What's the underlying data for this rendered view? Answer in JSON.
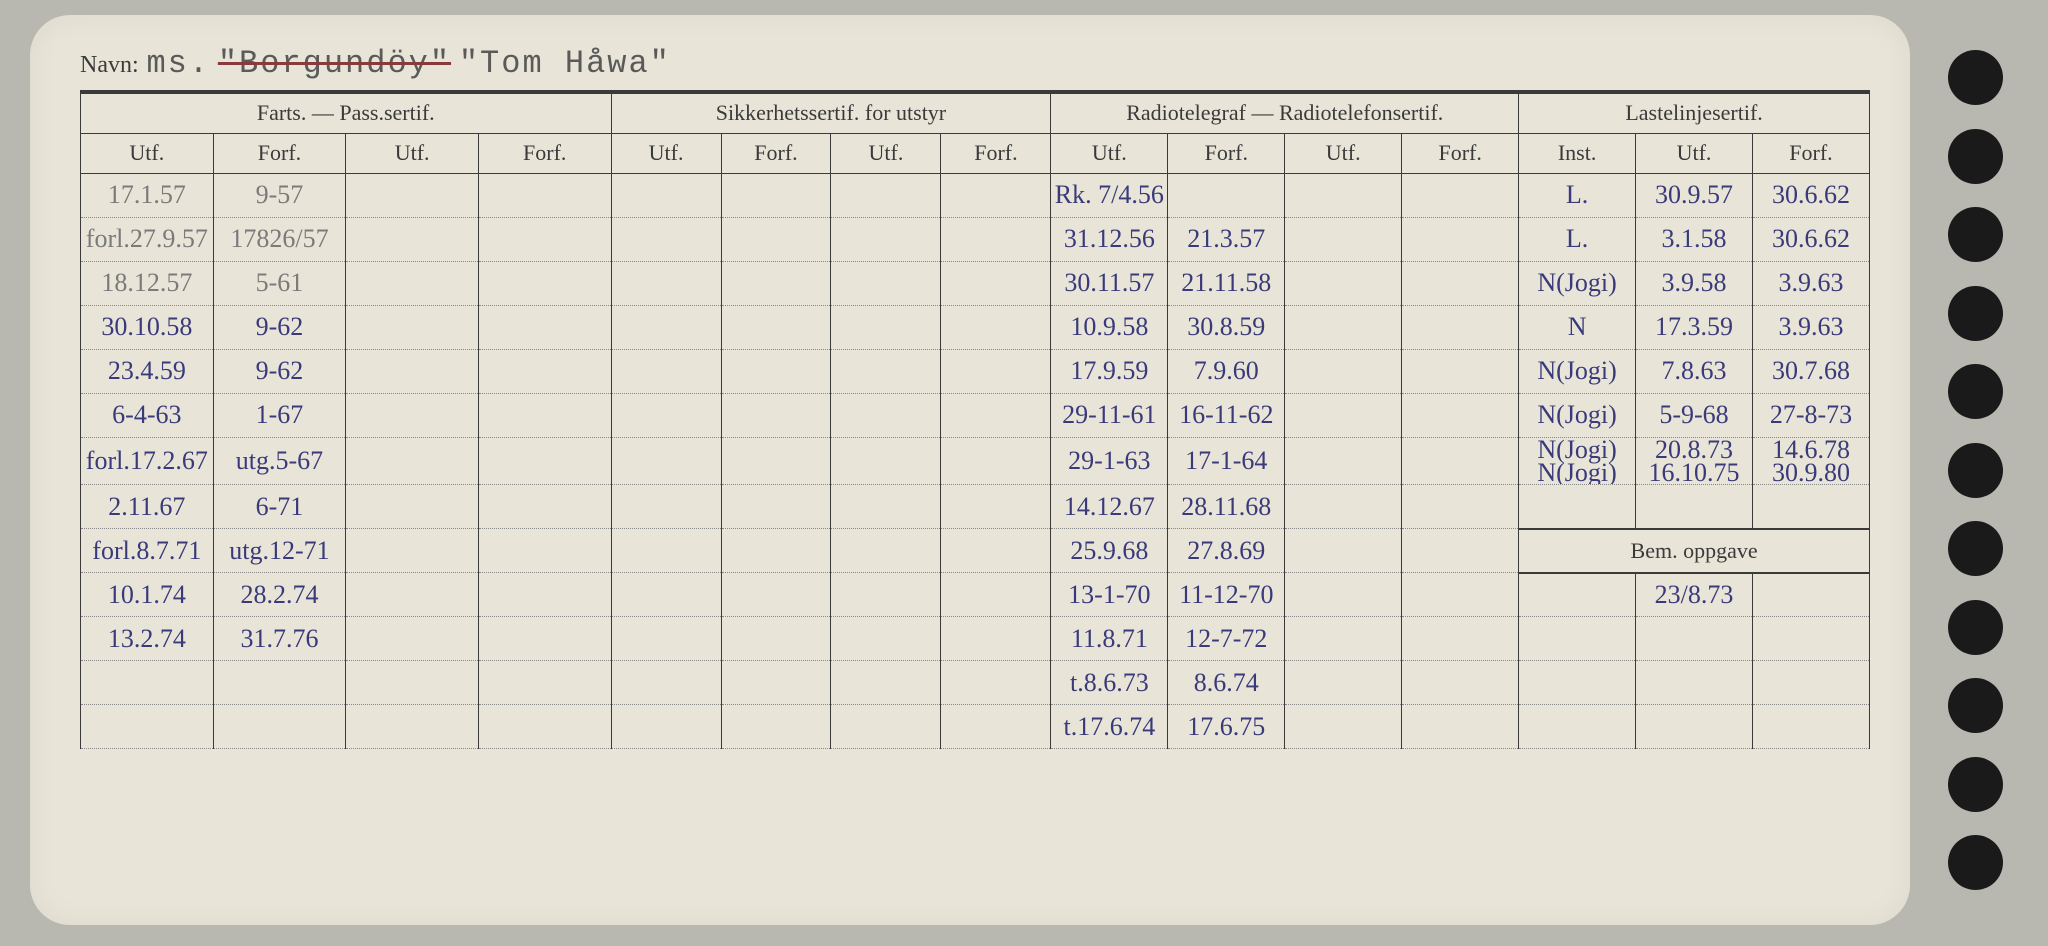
{
  "title": {
    "label": "Navn:",
    "prefix": "ms.",
    "struck": "\"Borgundöy\"",
    "name": "\"Tom Håwa\""
  },
  "headers": {
    "group1": "Farts. — Pass.sertif.",
    "group2": "Sikkerhetssertif. for utstyr",
    "group3": "Radiotelegraf — Radiotelefonsertif.",
    "group4": "Lastelinjesertif.",
    "utf": "Utf.",
    "forf": "Forf.",
    "inst": "Inst.",
    "bem": "Bem. oppgave"
  },
  "colors": {
    "paper": "#e8e5d8",
    "ink_printed": "#3a3a3a",
    "ink_pencil": "#7a7a7a",
    "ink_pen_blue": "#3a3a7a",
    "ink_pen_dark": "#2a2a4a",
    "hole": "#1a1a1a",
    "background": "#b8b8b0"
  },
  "rows": [
    {
      "f1": "17.1.57",
      "f2": "9-57",
      "r1": "Rk. 7/4.56",
      "r2": "",
      "l1": "L.",
      "l2": "30.9.57",
      "l3": "30.6.62"
    },
    {
      "f1": "forl.27.9.57",
      "f2": "17826/57",
      "r1": "31.12.56",
      "r2": "21.3.57",
      "l1": "L.",
      "l2": "3.1.58",
      "l3": "30.6.62"
    },
    {
      "f1": "18.12.57",
      "f2": "5-61",
      "r1": "30.11.57",
      "r2": "21.11.58",
      "l1": "N(Jogi)",
      "l2": "3.9.58",
      "l3": "3.9.63"
    },
    {
      "f1": "30.10.58",
      "f2": "9-62",
      "r1": "10.9.58",
      "r2": "30.8.59",
      "l1": "N",
      "l2": "17.3.59",
      "l3": "3.9.63"
    },
    {
      "f1": "23.4.59",
      "f2": "9-62",
      "r1": "17.9.59",
      "r2": "7.9.60",
      "l1": "N(Jogi)",
      "l2": "7.8.63",
      "l3": "30.7.68"
    },
    {
      "f1": "6-4-63",
      "f2": "1-67",
      "r1": "29-11-61",
      "r2": "16-11-62",
      "l1": "N(Jogi)",
      "l2": "5-9-68",
      "l3": "27-8-73"
    },
    {
      "f1": "forl.17.2.67",
      "f2": "utg.5-67",
      "r1": "29-1-63",
      "r2": "17-1-64",
      "l1": "N(Jogi)\nN(Jogi)",
      "l2": "20.8.73\n16.10.75",
      "l3": "14.6.78\n30.9.80"
    },
    {
      "f1": "2.11.67",
      "f2": "6-71",
      "r1": "14.12.67",
      "r2": "28.11.68",
      "l1": "",
      "l2": "",
      "l3": ""
    },
    {
      "f1": "forl.8.7.71",
      "f2": "utg.12-71",
      "r1": "25.9.68",
      "r2": "27.8.69",
      "bem": true
    },
    {
      "f1": "10.1.74",
      "f2": "28.2.74",
      "r1": "13-1-70",
      "r2": "11-12-70",
      "l1": "",
      "l2": "23/8.73",
      "l3": ""
    },
    {
      "f1": "13.2.74",
      "f2": "31.7.76",
      "r1": "11.8.71",
      "r2": "12-7-72",
      "l1": "",
      "l2": "",
      "l3": ""
    },
    {
      "f1": "",
      "f2": "",
      "r1": "t.8.6.73",
      "r2": "8.6.74",
      "l1": "",
      "l2": "",
      "l3": ""
    },
    {
      "f1": "",
      "f2": "",
      "r1": "t.17.6.74",
      "r2": "17.6.75",
      "l1": "",
      "l2": "",
      "l3": ""
    }
  ]
}
